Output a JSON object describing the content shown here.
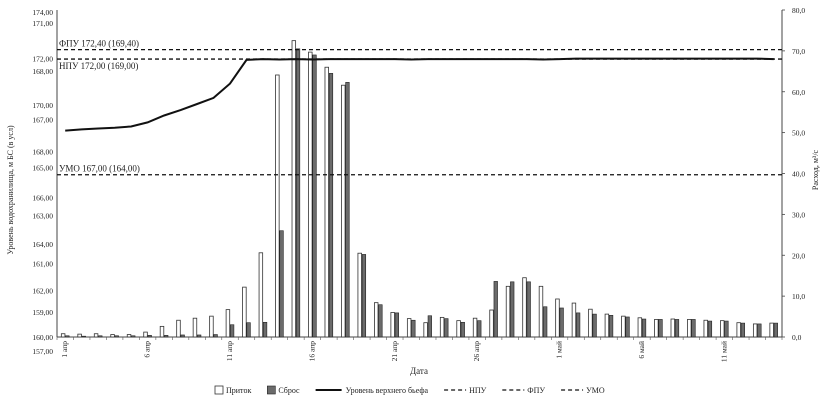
{
  "chart_data": {
    "type": "bar",
    "xlabel": "Дата",
    "ylabel_left": "Уровень водохранилища, м БС (в усл)",
    "ylabel_right": "Расход, м³/с",
    "left_ticks_a": [
      "174,00",
      "172,00",
      "170,00",
      "168,00",
      "166,00",
      "164,00",
      "162,00",
      "160,00"
    ],
    "left_ticks_b": [
      "171,00",
      "168,00",
      "167,00",
      "165,00",
      "163,00",
      "161,00",
      "159,00",
      "157,00"
    ],
    "right_ticks": [
      "80,0",
      "70,0",
      "60,0",
      "50,0",
      "40,0",
      "30,0",
      "20,0",
      "10,0",
      "0,0"
    ],
    "right_ylim": [
      0,
      80
    ],
    "left_ylim": [
      160,
      174
    ],
    "x_tick_labels": [
      {
        "day": 0,
        "label": "1 апр"
      },
      {
        "day": 5,
        "label": "6 апр"
      },
      {
        "day": 10,
        "label": "11 апр"
      },
      {
        "day": 15,
        "label": "16 апр"
      },
      {
        "day": 20,
        "label": "21 апр"
      },
      {
        "day": 25,
        "label": "26 апр"
      },
      {
        "day": 30,
        "label": "1 май"
      },
      {
        "day": 35,
        "label": "6 май"
      },
      {
        "day": 40,
        "label": "11 май"
      }
    ],
    "series": [
      {
        "name": "Приток",
        "style": "bar-outline",
        "color": "#ffffff",
        "values": [
          0.8,
          0.7,
          0.8,
          0.6,
          0.6,
          1.2,
          2.6,
          4.1,
          4.6,
          5.1,
          6.7,
          12.2,
          20.6,
          64.1,
          72.5,
          69.7,
          66.0,
          61.6,
          20.5,
          8.4,
          6.0,
          4.5,
          3.5,
          4.8,
          4.0,
          4.6,
          6.6,
          12.4,
          14.5,
          12.4,
          9.3,
          8.3,
          6.8,
          5.6,
          5.1,
          4.7,
          4.3,
          4.4,
          4.3,
          4.1,
          4.0,
          3.5,
          3.2,
          3.4
        ]
      },
      {
        "name": "Сброс",
        "style": "bar-dark",
        "color": "#6b6b6b",
        "values": [
          0.3,
          0.2,
          0.3,
          0.3,
          0.3,
          0.4,
          0.4,
          0.5,
          0.5,
          0.6,
          3.0,
          3.5,
          3.6,
          26.0,
          70.5,
          69.0,
          64.5,
          62.3,
          20.2,
          7.9,
          5.9,
          4.1,
          5.2,
          4.5,
          3.6,
          4.0,
          13.6,
          13.5,
          13.5,
          7.4,
          7.1,
          5.9,
          5.6,
          5.3,
          4.9,
          4.4,
          4.3,
          4.3,
          4.3,
          3.9,
          3.9,
          3.4,
          3.2,
          3.4
        ]
      },
      {
        "name": "Уровень верхнего бьефа",
        "style": "line",
        "color": "#111111",
        "values_right_axis": [
          50.5,
          50.8,
          51.0,
          51.2,
          51.5,
          52.5,
          54.2,
          55.5,
          57.0,
          58.5,
          62.0,
          67.8,
          68.0,
          67.9,
          68.0,
          67.9,
          68.0,
          68.0,
          68.0,
          68.0,
          68.0,
          67.9,
          68.0,
          68.0,
          68.0,
          68.0,
          68.0,
          68.0,
          68.0,
          67.9,
          68.0,
          68.1,
          68.1,
          68.1,
          68.1,
          68.1,
          68.1,
          68.1,
          68.1,
          68.1,
          68.1,
          68.1,
          68.1,
          68.0
        ]
      },
      {
        "name": "НПУ",
        "style": "dashed",
        "color": "#111111",
        "value_right_axis": 68.0
      },
      {
        "name": "ФПУ",
        "style": "dashed",
        "color": "#111111",
        "value_right_axis": 70.3
      },
      {
        "name": "УМО",
        "style": "dashed",
        "color": "#111111",
        "value_right_axis": 39.7
      }
    ],
    "annotations": [
      {
        "text": "ФПУ  172,40 (169,40)",
        "series": "ФПУ"
      },
      {
        "text": "НПУ 172,00 (169,00)",
        "series": "НПУ"
      },
      {
        "text": "УМО 167,00 (164,00)",
        "series": "УМО"
      }
    ]
  }
}
